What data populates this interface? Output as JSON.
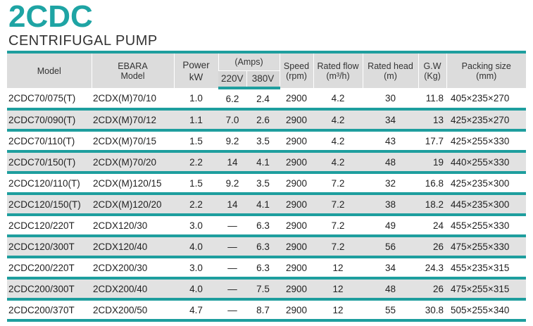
{
  "title": "2CDC",
  "subtitle": "CENTRIFUGAL PUMP",
  "headers": {
    "model": "Model",
    "ebara_line1": "EBARA",
    "ebara_line2": "Model",
    "power_line1": "Power",
    "power_line2": "kW",
    "amps": "(Amps)",
    "v220": "220V",
    "v380": "380V",
    "speed_line1": "Speed",
    "speed_line2": "(rpm)",
    "flow_line1": "Rated flow",
    "flow_line2": "(m³/h)",
    "head_line1": "Rated head",
    "head_line2": "(m)",
    "gw_line1": "G.W",
    "gw_line2": "(Kg)",
    "pack_line1": "Packing size",
    "pack_line2": "(mm)"
  },
  "rows": [
    [
      "2CDC70/075(T)",
      "2CDX(M)70/10",
      "1.0",
      "6.2",
      "2.4",
      "2900",
      "4.2",
      "30",
      "11.8",
      "405×235×270"
    ],
    [
      "2CDC70/090(T)",
      "2CDX(M)70/12",
      "1.1",
      "7.0",
      "2.6",
      "2900",
      "4.2",
      "34",
      "13",
      "425×235×270"
    ],
    [
      "2CDC70/110(T)",
      "2CDX(M)70/15",
      "1.5",
      "9.2",
      "3.5",
      "2900",
      "4.2",
      "43",
      "17.7",
      "425×255×330"
    ],
    [
      "2CDC70/150(T)",
      "2CDX(M)70/20",
      "2.2",
      "14",
      "4.1",
      "2900",
      "4.2",
      "48",
      "19",
      "440×255×330"
    ],
    [
      "2CDC120/110(T)",
      "2CDX(M)120/15",
      "1.5",
      "9.2",
      "3.5",
      "2900",
      "7.2",
      "32",
      "16.8",
      "425×235×300"
    ],
    [
      "2CDC120/150(T)",
      "2CDX(M)120/20",
      "2.2",
      "14",
      "4.1",
      "2900",
      "7.2",
      "38",
      "18.2",
      "445×235×300"
    ],
    [
      "2CDC120/220T",
      "2CDX120/30",
      "3.0",
      "—",
      "6.3",
      "2900",
      "7.2",
      "49",
      "24",
      "455×255×330"
    ],
    [
      "2CDC120/300T",
      "2CDX120/40",
      "4.0",
      "—",
      "6.3",
      "2900",
      "7.2",
      "56",
      "26",
      "475×255×330"
    ],
    [
      "2CDC200/220T",
      "2CDX200/30",
      "3.0",
      "—",
      "6.3",
      "2900",
      "12",
      "34",
      "24.3",
      "455×235×315"
    ],
    [
      "2CDC200/300T",
      "2CDX200/40",
      "4.0",
      "—",
      "7.5",
      "2900",
      "12",
      "48",
      "26",
      "475×255×315"
    ],
    [
      "2CDC200/370T",
      "2CDX200/50",
      "4.7",
      "—",
      "8.7",
      "2900",
      "12",
      "55",
      "30.8",
      "505×255×340"
    ]
  ]
}
